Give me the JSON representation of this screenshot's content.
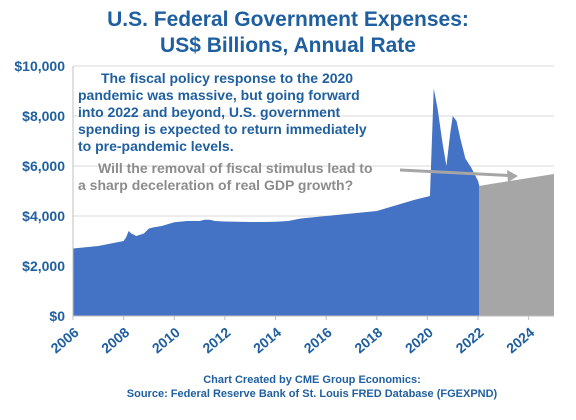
{
  "chart_data": {
    "type": "area",
    "title": "U.S. Federal Government Expenses:",
    "subtitle": "US$ Billions, Annual Rate",
    "xlabel": "",
    "ylabel": "",
    "xlim": [
      2006,
      2025
    ],
    "ylim": [
      0,
      10000
    ],
    "y_ticks": [
      0,
      2000,
      4000,
      6000,
      8000,
      10000
    ],
    "y_tick_labels": [
      "$0",
      "$2,000",
      "$4,000",
      "$6,000",
      "$8,000",
      "$10,000"
    ],
    "x_ticks": [
      2006,
      2008,
      2010,
      2012,
      2014,
      2016,
      2018,
      2020,
      2022,
      2024
    ],
    "x_tick_labels": [
      "2006",
      "2008",
      "2010",
      "2012",
      "2014",
      "2016",
      "2018",
      "2020",
      "2022",
      "2024"
    ],
    "grid": true,
    "series": [
      {
        "color": "#4472c4",
        "x": [
          2006.0,
          2006.5,
          2007.0,
          2007.5,
          2008.0,
          2008.1,
          2008.2,
          2008.3,
          2008.5,
          2008.8,
          2009.0,
          2009.2,
          2009.5,
          2010.0,
          2010.5,
          2011.0,
          2011.2,
          2011.4,
          2011.6,
          2012.0,
          2012.5,
          2013.0,
          2013.5,
          2014.0,
          2014.5,
          2015.0,
          2015.5,
          2016.0,
          2016.5,
          2017.0,
          2017.5,
          2018.0,
          2018.5,
          2019.0,
          2019.5,
          2019.9,
          2020.1,
          2020.25,
          2020.4,
          2020.6,
          2020.75,
          2020.9,
          2021.0,
          2021.15,
          2021.3,
          2021.5,
          2021.75,
          2022.0,
          2022.05
        ],
        "y": [
          2700,
          2750,
          2800,
          2900,
          3000,
          3150,
          3400,
          3300,
          3200,
          3300,
          3500,
          3550,
          3600,
          3750,
          3800,
          3800,
          3850,
          3850,
          3800,
          3780,
          3770,
          3760,
          3760,
          3770,
          3800,
          3900,
          3950,
          4000,
          4050,
          4100,
          4150,
          4200,
          4350,
          4500,
          4650,
          4750,
          4800,
          9100,
          8300,
          6900,
          6000,
          7300,
          8000,
          7800,
          7100,
          6300,
          5900,
          5400,
          5200
        ]
      },
      {
        "color": "#a6a6a6",
        "x": [
          2022.05,
          2022.5,
          2023.0,
          2023.5,
          2024.0,
          2024.5,
          2025.0
        ],
        "y": [
          5200,
          5280,
          5360,
          5440,
          5520,
          5600,
          5680
        ]
      }
    ],
    "annotations": [
      {
        "color": "#1f5f9f",
        "lines": [
          "The fiscal policy response to the 2020",
          "pandemic was massive, but going forward",
          "into 2022 and beyond, U.S. government",
          "spending is expected to return immediately",
          "to pre-pandemic levels."
        ]
      },
      {
        "color": "#8c8c8c",
        "lines": [
          "Will the removal of fiscal stimulus lead to",
          "a sharp deceleration of real GDP growth?"
        ]
      }
    ],
    "footer": [
      "Chart Created by CME Group Economics:",
      "Source: Federal Reserve Bank of St. Louis FRED Database (FGEXPND)"
    ]
  }
}
